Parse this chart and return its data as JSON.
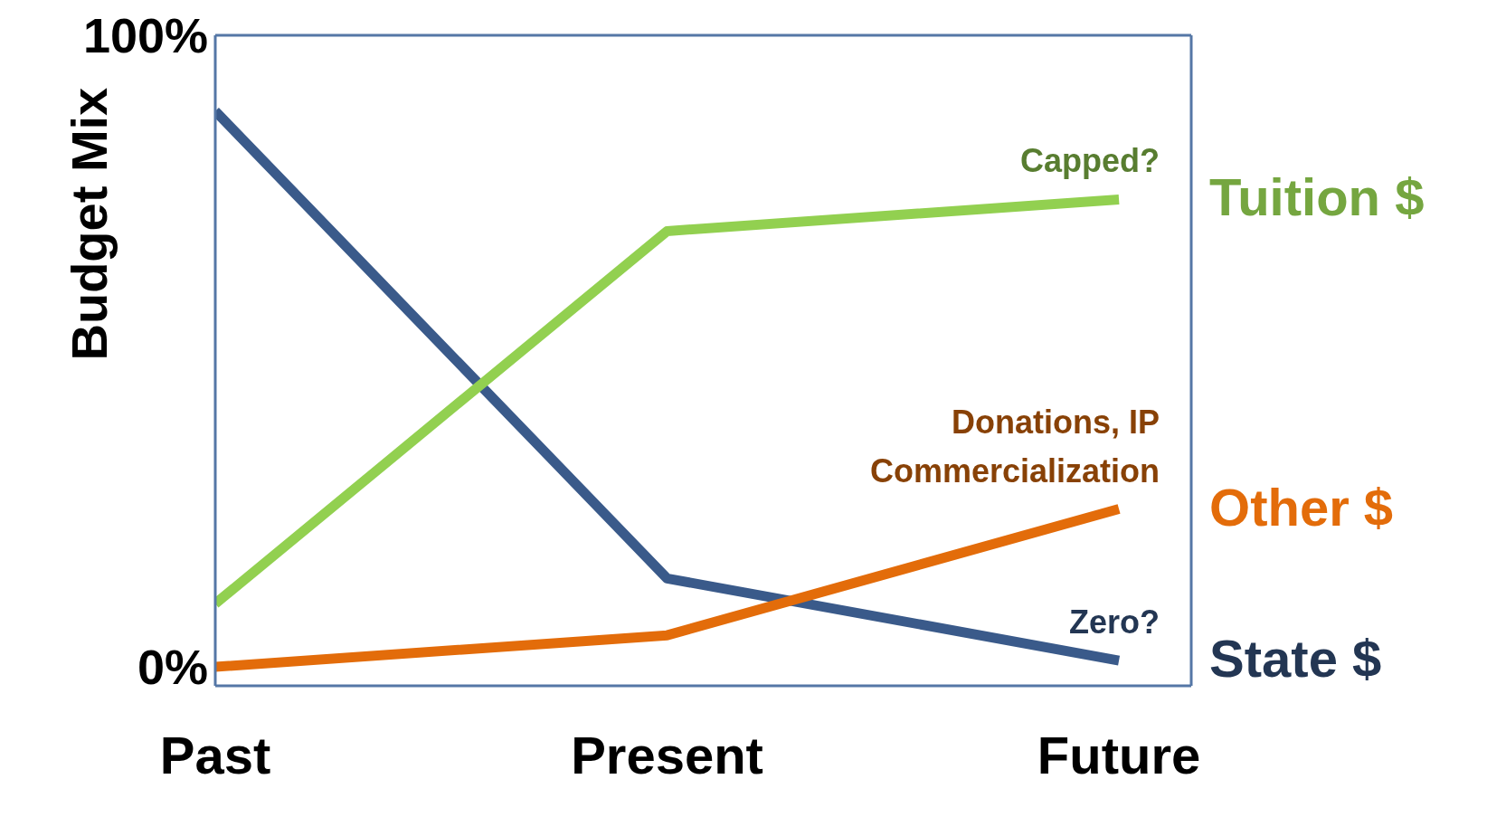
{
  "chart_data": {
    "type": "line",
    "ylabel": "Budget Mix",
    "categories": [
      "Past",
      "Present",
      "Future"
    ],
    "ylim": [
      -3,
      100
    ],
    "yticks": [
      {
        "value": 0,
        "label": "0%"
      },
      {
        "value": 100,
        "label": "100%"
      }
    ],
    "marker": "none",
    "line_style": "solid",
    "series": [
      {
        "name": "State $",
        "color": "#3a5a8a",
        "values": [
          88,
          14,
          1
        ]
      },
      {
        "name": "Tuition $",
        "color": "#92d050",
        "values": [
          10,
          69,
          74
        ]
      },
      {
        "name": "Other $",
        "color": "#e36c0a",
        "values": [
          0,
          5,
          25
        ]
      }
    ],
    "annotations": [
      "Capped?",
      "Donations, IP Commercialization",
      "Zero?"
    ]
  }
}
